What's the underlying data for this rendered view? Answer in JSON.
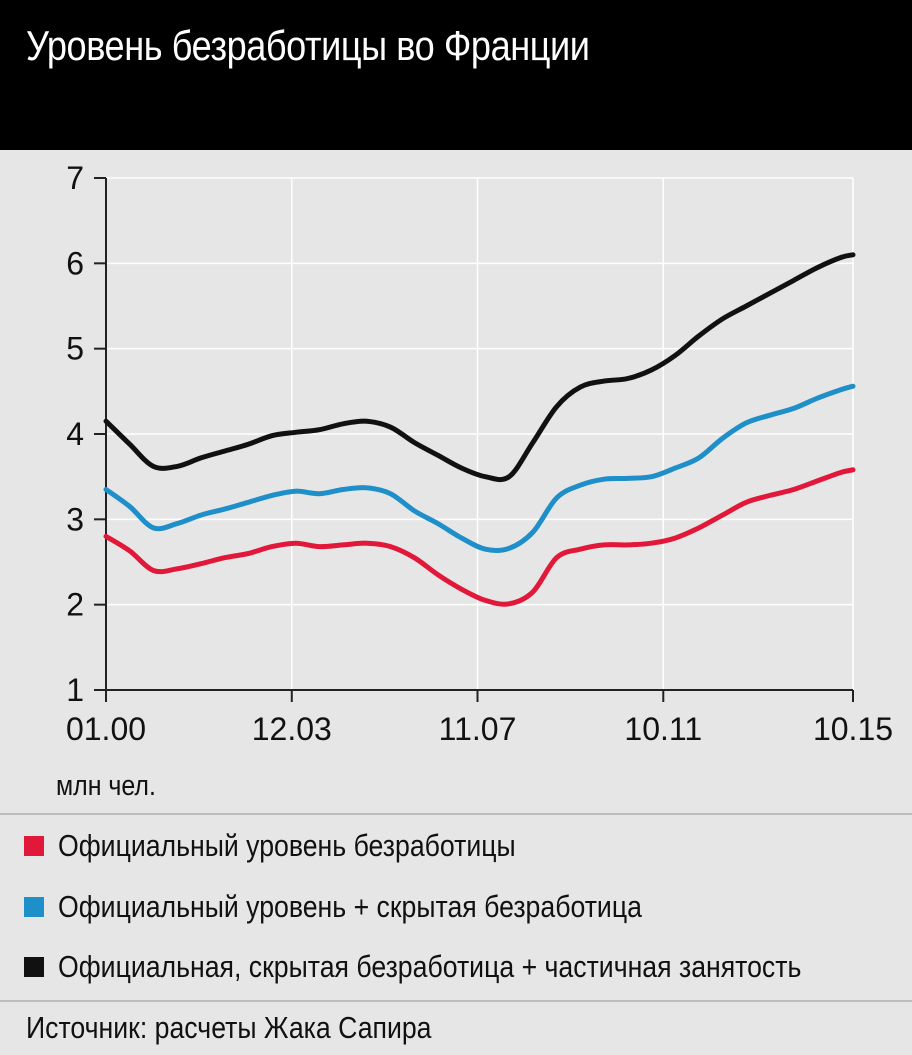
{
  "title": "Уровень безработицы во Франции",
  "unit_label": "млн чел.",
  "source": "Источник: расчеты Жака Сапира",
  "legend": [
    {
      "label": "Официальный уровень безработицы",
      "color": "#e2183a"
    },
    {
      "label": "Официальный уровень + скрытая безработица",
      "color": "#1e8fc9"
    },
    {
      "label": "Официальная, скрытая безработица + частичная занятость",
      "color": "#111111"
    }
  ],
  "chart_data": {
    "type": "line",
    "title": "Уровень безработицы во Франции",
    "xlabel": "",
    "ylabel": "млн чел.",
    "ylim": [
      1,
      7
    ],
    "yticks": [
      1,
      2,
      3,
      4,
      5,
      6,
      7
    ],
    "xlim": [
      2000.0,
      2015.75
    ],
    "xticks": [
      {
        "label": "01.00",
        "value": 2000.0
      },
      {
        "label": "12.03",
        "value": 2003.917
      },
      {
        "label": "11.07",
        "value": 2007.833
      },
      {
        "label": "10.11",
        "value": 2011.75
      },
      {
        "label": "10.15",
        "value": 2015.75
      }
    ],
    "grid": true,
    "series": [
      {
        "name": "Официальный уровень безработицы",
        "color": "#e2183a",
        "x": [
          2000.0,
          2000.5,
          2001.0,
          2001.5,
          2002.0,
          2002.5,
          2003.0,
          2003.5,
          2004.0,
          2004.5,
          2005.0,
          2005.5,
          2006.0,
          2006.5,
          2007.0,
          2007.5,
          2008.0,
          2008.5,
          2009.0,
          2009.5,
          2010.0,
          2010.5,
          2011.0,
          2011.5,
          2012.0,
          2012.5,
          2013.0,
          2013.5,
          2014.0,
          2014.5,
          2015.0,
          2015.5,
          2015.75
        ],
        "y": [
          2.8,
          2.63,
          2.4,
          2.42,
          2.48,
          2.55,
          2.6,
          2.68,
          2.72,
          2.68,
          2.7,
          2.72,
          2.68,
          2.55,
          2.35,
          2.18,
          2.05,
          2.01,
          2.15,
          2.55,
          2.65,
          2.7,
          2.7,
          2.72,
          2.78,
          2.9,
          3.05,
          3.2,
          3.28,
          3.35,
          3.45,
          3.55,
          3.58
        ]
      },
      {
        "name": "Официальный уровень + скрытая безработица",
        "color": "#1e8fc9",
        "x": [
          2000.0,
          2000.5,
          2001.0,
          2001.5,
          2002.0,
          2002.5,
          2003.0,
          2003.5,
          2004.0,
          2004.5,
          2005.0,
          2005.5,
          2006.0,
          2006.5,
          2007.0,
          2007.5,
          2008.0,
          2008.5,
          2009.0,
          2009.5,
          2010.0,
          2010.5,
          2011.0,
          2011.5,
          2012.0,
          2012.5,
          2013.0,
          2013.5,
          2014.0,
          2014.5,
          2015.0,
          2015.5,
          2015.75
        ],
        "y": [
          3.35,
          3.15,
          2.9,
          2.95,
          3.05,
          3.12,
          3.2,
          3.28,
          3.33,
          3.3,
          3.35,
          3.37,
          3.3,
          3.1,
          2.95,
          2.78,
          2.65,
          2.66,
          2.85,
          3.25,
          3.4,
          3.47,
          3.48,
          3.5,
          3.6,
          3.72,
          3.95,
          4.13,
          4.22,
          4.3,
          4.42,
          4.52,
          4.56
        ]
      },
      {
        "name": "Официальная, скрытая безработица + частичная занятость",
        "color": "#111111",
        "x": [
          2000.0,
          2000.5,
          2001.0,
          2001.5,
          2002.0,
          2002.5,
          2003.0,
          2003.5,
          2004.0,
          2004.5,
          2005.0,
          2005.5,
          2006.0,
          2006.5,
          2007.0,
          2007.5,
          2008.0,
          2008.5,
          2009.0,
          2009.5,
          2010.0,
          2010.5,
          2011.0,
          2011.5,
          2012.0,
          2012.5,
          2013.0,
          2013.5,
          2014.0,
          2014.5,
          2015.0,
          2015.5,
          2015.75
        ],
        "y": [
          4.15,
          3.88,
          3.62,
          3.62,
          3.72,
          3.8,
          3.88,
          3.98,
          4.02,
          4.05,
          4.12,
          4.15,
          4.08,
          3.9,
          3.75,
          3.6,
          3.5,
          3.5,
          3.9,
          4.32,
          4.55,
          4.62,
          4.65,
          4.75,
          4.92,
          5.15,
          5.35,
          5.5,
          5.65,
          5.8,
          5.95,
          6.07,
          6.1
        ]
      }
    ]
  }
}
